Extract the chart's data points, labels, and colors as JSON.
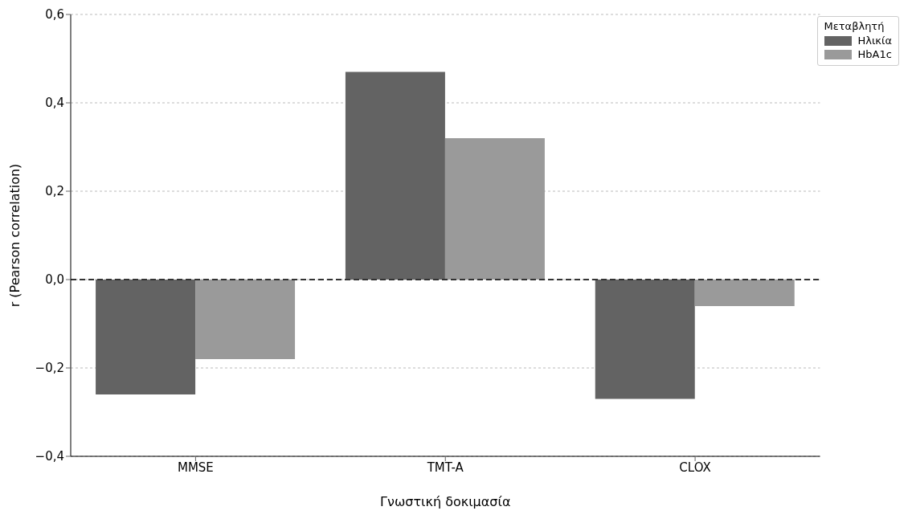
{
  "chart_data": {
    "type": "bar",
    "xlabel": "Γνωστική δοκιμασία",
    "ylabel": "r (Pearson correlation)",
    "legend_title": "Μεταβλητή",
    "categories": [
      "MMSE",
      "TMT-A",
      "CLOX"
    ],
    "series": [
      {
        "name": "Ηλικία",
        "color": "#636363",
        "values": [
          -0.26,
          0.47,
          -0.27
        ]
      },
      {
        "name": "HbA1c",
        "color": "#9a9a9a",
        "values": [
          -0.18,
          0.32,
          -0.06
        ]
      }
    ],
    "ylim": [
      -0.4,
      0.6
    ],
    "yticks": [
      {
        "value": -0.4,
        "label": "−0,4"
      },
      {
        "value": -0.2,
        "label": "−0,2"
      },
      {
        "value": 0,
        "label": "0,0"
      },
      {
        "value": 0.2,
        "label": "0,2"
      },
      {
        "value": 0.4,
        "label": "0,4"
      },
      {
        "value": 0.6,
        "label": "0,6"
      }
    ],
    "grid": "y",
    "legend": "top right",
    "ref_lines": [
      {
        "axis": "y",
        "value": 0,
        "color": "#333333",
        "line_style": "dashed"
      }
    ]
  }
}
